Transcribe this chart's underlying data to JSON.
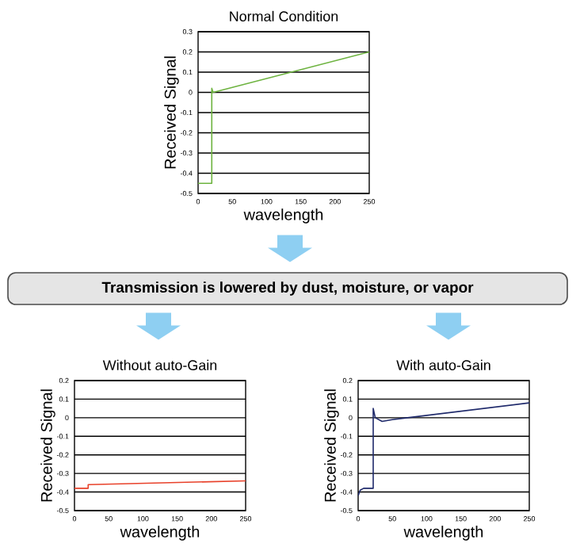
{
  "chart_data": [
    {
      "type": "line",
      "title": "Normal Condition",
      "xlabel": "wavelength",
      "ylabel": "Received Signal",
      "x": [
        0,
        20,
        20,
        22,
        250
      ],
      "values": [
        -0.45,
        -0.45,
        0.02,
        0.0,
        0.2
      ],
      "color": "#6db33f",
      "xlim": [
        0,
        250
      ],
      "ylim": [
        -0.5,
        0.3
      ],
      "xticks": [
        0,
        50,
        100,
        150,
        200,
        250
      ],
      "yticks": [
        -0.5,
        -0.4,
        -0.3,
        -0.2,
        -0.1,
        0,
        0.1,
        0.2,
        0.3
      ],
      "grid": "y"
    },
    {
      "type": "other",
      "annotations": [
        "Transmission is lowered by dust, moisture, or vapor"
      ]
    },
    {
      "type": "line",
      "title": "Without auto-Gain",
      "xlabel": "wavelength",
      "ylabel": "Received Signal",
      "x": [
        0,
        20,
        20,
        250
      ],
      "values": [
        -0.38,
        -0.38,
        -0.36,
        -0.34
      ],
      "color": "#e8412a",
      "xlim": [
        0,
        250
      ],
      "ylim": [
        -0.5,
        0.2
      ],
      "xticks": [
        0,
        50,
        100,
        150,
        200,
        250
      ],
      "yticks": [
        -0.5,
        -0.4,
        -0.3,
        -0.2,
        -0.1,
        0,
        0.1,
        0.2
      ],
      "grid": "y"
    },
    {
      "type": "line",
      "title": "With auto-Gain",
      "xlabel": "wavelength",
      "ylabel": "Received Signal",
      "x": [
        0,
        3,
        8,
        22,
        22,
        25,
        35,
        50,
        250
      ],
      "values": [
        -0.42,
        -0.39,
        -0.38,
        -0.38,
        0.05,
        0.0,
        -0.02,
        -0.01,
        0.08
      ],
      "color": "#1f2a6b",
      "xlim": [
        0,
        250
      ],
      "ylim": [
        -0.5,
        0.2
      ],
      "xticks": [
        0,
        50,
        100,
        150,
        200,
        250
      ],
      "yticks": [
        -0.5,
        -0.4,
        -0.3,
        -0.2,
        -0.1,
        0,
        0.1,
        0.2
      ],
      "grid": "y"
    }
  ]
}
